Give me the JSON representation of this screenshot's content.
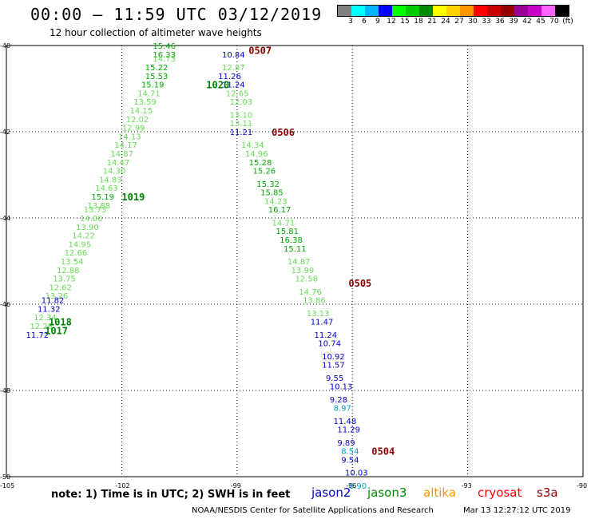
{
  "header": {
    "title": "00:00 – 11:59 UTC 03/12/2019",
    "subtitle": "12 hour collection of altimeter wave heights"
  },
  "color_legend": {
    "labels": [
      "3",
      "6",
      "9",
      "12",
      "15",
      "18",
      "21",
      "24",
      "27",
      "30",
      "33",
      "36",
      "39",
      "42",
      "45",
      "70",
      "(ft)"
    ],
    "colors": [
      "#808080",
      "#00ffff",
      "#00b4ff",
      "#0000ff",
      "#00ff00",
      "#00cc00",
      "#008c00",
      "#ffff00",
      "#ffd200",
      "#ff9600",
      "#ff0000",
      "#c80000",
      "#960000",
      "#960096",
      "#c800c8",
      "#ff64ff",
      "#000000"
    ]
  },
  "axes": {
    "lat_labels": [
      "-40",
      "-42",
      "-44",
      "-46",
      "-48",
      "-50"
    ],
    "lon_labels": [
      "-105",
      "-102",
      "-99",
      "-96",
      "-93",
      "-90"
    ]
  },
  "chart_data": {
    "type": "scatter",
    "title": "00:00 – 11:59 UTC 03/12/2019",
    "xlim": [
      -105,
      -90
    ],
    "ylim": [
      -50,
      -40
    ],
    "grid": true,
    "series": [
      {
        "pass": "west",
        "points": [
          {
            "lon": -100.9,
            "lat": -40.0,
            "v": "15.46"
          },
          {
            "lon": -100.9,
            "lat": -40.2,
            "v": "16.33"
          },
          {
            "lon": -100.9,
            "lat": -40.3,
            "v": "14.73"
          },
          {
            "lon": -101.1,
            "lat": -40.5,
            "v": "15.22"
          },
          {
            "lon": -101.1,
            "lat": -40.7,
            "v": "15.53"
          },
          {
            "lon": -101.2,
            "lat": -40.9,
            "v": "15.19"
          },
          {
            "lon": -101.3,
            "lat": -41.1,
            "v": "14.71"
          },
          {
            "lon": -101.4,
            "lat": -41.3,
            "v": "13.59"
          },
          {
            "lon": -101.5,
            "lat": -41.5,
            "v": "14.15"
          },
          {
            "lon": -101.6,
            "lat": -41.7,
            "v": "12.02"
          },
          {
            "lon": -101.7,
            "lat": -41.9,
            "v": "12.99"
          },
          {
            "lon": -101.8,
            "lat": -42.1,
            "v": "14.13"
          },
          {
            "lon": -101.9,
            "lat": -42.3,
            "v": "14.17"
          },
          {
            "lon": -102.0,
            "lat": -42.5,
            "v": "14.87"
          },
          {
            "lon": -102.1,
            "lat": -42.7,
            "v": "14.47"
          },
          {
            "lon": -102.2,
            "lat": -42.9,
            "v": "14.30"
          },
          {
            "lon": -102.3,
            "lat": -43.1,
            "v": "14.83"
          },
          {
            "lon": -102.4,
            "lat": -43.3,
            "v": "14.63"
          },
          {
            "lon": -102.5,
            "lat": -43.5,
            "v": "15.19"
          },
          {
            "lon": -102.6,
            "lat": -43.7,
            "v": "13.88"
          },
          {
            "lon": -102.7,
            "lat": -43.8,
            "v": "13.73"
          },
          {
            "lon": -102.8,
            "lat": -44.0,
            "v": "14.00"
          },
          {
            "lon": -102.9,
            "lat": -44.2,
            "v": "13.90"
          },
          {
            "lon": -103.0,
            "lat": -44.4,
            "v": "14.22"
          },
          {
            "lon": -103.1,
            "lat": -44.6,
            "v": "14.95"
          },
          {
            "lon": -103.2,
            "lat": -44.8,
            "v": "12.66"
          },
          {
            "lon": -103.3,
            "lat": -45.0,
            "v": "13.54"
          },
          {
            "lon": -103.4,
            "lat": -45.2,
            "v": "12.88"
          },
          {
            "lon": -103.5,
            "lat": -45.4,
            "v": "13.75"
          },
          {
            "lon": -103.6,
            "lat": -45.6,
            "v": "12.62"
          },
          {
            "lon": -103.7,
            "lat": -45.8,
            "v": "13.26"
          },
          {
            "lon": -103.8,
            "lat": -45.9,
            "v": "11.82"
          },
          {
            "lon": -103.9,
            "lat": -46.1,
            "v": "11.32"
          },
          {
            "lon": -104.0,
            "lat": -46.3,
            "v": "12.34"
          },
          {
            "lon": -104.1,
            "lat": -46.5,
            "v": "12.28"
          },
          {
            "lon": -104.2,
            "lat": -46.7,
            "v": "11.72"
          }
        ]
      },
      {
        "pass": "east",
        "points": [
          {
            "lon": -99.1,
            "lat": -40.2,
            "v": "10.84"
          },
          {
            "lon": -99.1,
            "lat": -40.5,
            "v": "12.87"
          },
          {
            "lon": -99.2,
            "lat": -40.7,
            "v": "11.26"
          },
          {
            "lon": -99.1,
            "lat": -40.9,
            "v": "11.24"
          },
          {
            "lon": -99.0,
            "lat": -41.1,
            "v": "12.65"
          },
          {
            "lon": -98.9,
            "lat": -41.3,
            "v": "12.03"
          },
          {
            "lon": -98.9,
            "lat": -41.6,
            "v": "13.10"
          },
          {
            "lon": -98.9,
            "lat": -41.8,
            "v": "13.11"
          },
          {
            "lon": -98.9,
            "lat": -42.0,
            "v": "11.21"
          },
          {
            "lon": -98.6,
            "lat": -42.3,
            "v": "14.34"
          },
          {
            "lon": -98.5,
            "lat": -42.5,
            "v": "14.96"
          },
          {
            "lon": -98.4,
            "lat": -42.7,
            "v": "15.28"
          },
          {
            "lon": -98.3,
            "lat": -42.9,
            "v": "15.26"
          },
          {
            "lon": -98.2,
            "lat": -43.2,
            "v": "15.32"
          },
          {
            "lon": -98.1,
            "lat": -43.4,
            "v": "15.85"
          },
          {
            "lon": -98.0,
            "lat": -43.6,
            "v": "14.23"
          },
          {
            "lon": -97.9,
            "lat": -43.8,
            "v": "16.17"
          },
          {
            "lon": -97.8,
            "lat": -44.1,
            "v": "14.71"
          },
          {
            "lon": -97.7,
            "lat": -44.3,
            "v": "15.81"
          },
          {
            "lon": -97.6,
            "lat": -44.5,
            "v": "16.38"
          },
          {
            "lon": -97.5,
            "lat": -44.7,
            "v": "15.11"
          },
          {
            "lon": -97.4,
            "lat": -45.0,
            "v": "14.87"
          },
          {
            "lon": -97.3,
            "lat": -45.2,
            "v": "13.99"
          },
          {
            "lon": -97.2,
            "lat": -45.4,
            "v": "12.58"
          },
          {
            "lon": -97.1,
            "lat": -45.7,
            "v": "14.76"
          },
          {
            "lon": -97.0,
            "lat": -45.9,
            "v": "13.86"
          },
          {
            "lon": -96.9,
            "lat": -46.2,
            "v": "13.13"
          },
          {
            "lon": -96.8,
            "lat": -46.4,
            "v": "11.47"
          },
          {
            "lon": -96.7,
            "lat": -46.7,
            "v": "11.24"
          },
          {
            "lon": -96.6,
            "lat": -46.9,
            "v": "10.74"
          },
          {
            "lon": -96.5,
            "lat": -47.2,
            "v": "10.92"
          },
          {
            "lon": -96.5,
            "lat": -47.4,
            "v": "11.57"
          },
          {
            "lon": -96.4,
            "lat": -47.7,
            "v": "9.55"
          },
          {
            "lon": -96.3,
            "lat": -47.9,
            "v": "10.13"
          },
          {
            "lon": -96.3,
            "lat": -48.2,
            "v": "9.28"
          },
          {
            "lon": -96.2,
            "lat": -48.4,
            "v": "8.97"
          },
          {
            "lon": -96.2,
            "lat": -48.7,
            "v": "11.48"
          },
          {
            "lon": -96.1,
            "lat": -48.9,
            "v": "11.29"
          },
          {
            "lon": -96.1,
            "lat": -49.2,
            "v": "9.89"
          },
          {
            "lon": -96.0,
            "lat": -49.4,
            "v": "8.54"
          },
          {
            "lon": -96.0,
            "lat": -49.6,
            "v": "9.54"
          },
          {
            "lon": -95.9,
            "lat": -49.9,
            "v": "10.03"
          },
          {
            "lon": -95.8,
            "lat": -50.2,
            "v": "8.90"
          }
        ]
      }
    ],
    "time_labels": [
      {
        "text": "0507",
        "lon": -98.7,
        "lat": -40.1
      },
      {
        "text": "0506",
        "lon": -98.1,
        "lat": -42.0
      },
      {
        "text": "0505",
        "lon": -96.1,
        "lat": -45.5
      },
      {
        "text": "0504",
        "lon": -95.5,
        "lat": -49.4
      },
      {
        "text": "1020",
        "lon": -99.8,
        "lat": -40.9
      },
      {
        "text": "1019",
        "lon": -102.0,
        "lat": -43.5
      },
      {
        "text": "1018",
        "lon": -103.9,
        "lat": -46.4
      },
      {
        "text": "1017",
        "lon": -104.0,
        "lat": -46.6
      }
    ]
  },
  "footer": {
    "note": "note: 1) Time is in UTC; 2) SWH is in feet",
    "satellites": [
      {
        "name": "jason2",
        "color": "#0000cc"
      },
      {
        "name": "jason3",
        "color": "#008c00"
      },
      {
        "name": "altika",
        "color": "#ff9600"
      },
      {
        "name": "cryosat",
        "color": "#ff0000"
      },
      {
        "name": "s3a",
        "color": "#960000"
      }
    ],
    "credit": "NOAA/NESDIS Center for Satellite Applications and Research",
    "timestamp": "Mar 13 12:27:12 UTC 2019"
  }
}
